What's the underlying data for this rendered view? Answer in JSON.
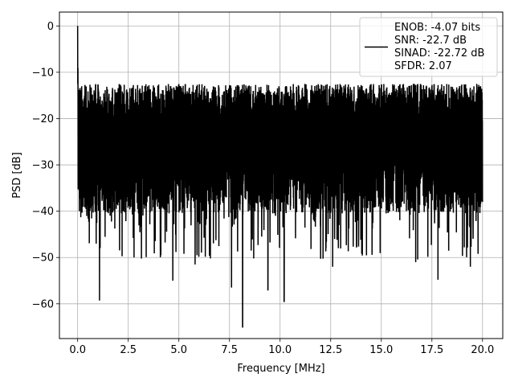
{
  "chart_data": {
    "type": "line",
    "title": "",
    "xlabel": "Frequency [MHz]",
    "ylabel": "PSD [dB]",
    "xlim": [
      -0.9,
      21.0
    ],
    "ylim": [
      -67.5,
      3.0
    ],
    "grid": true,
    "legend_position": "upper-right",
    "x_ticks": [
      0.0,
      2.5,
      5.0,
      7.5,
      10.0,
      12.5,
      15.0,
      17.5,
      20.0
    ],
    "x_tick_labels": [
      "0.0",
      "2.5",
      "5.0",
      "7.5",
      "10.0",
      "12.5",
      "15.0",
      "17.5",
      "20.0"
    ],
    "y_ticks": [
      0,
      -10,
      -20,
      -30,
      -40,
      -50,
      -60
    ],
    "y_tick_labels": [
      "0",
      "−10",
      "−20",
      "−30",
      "−40",
      "−50",
      "−60"
    ],
    "series": [
      {
        "name": "ENOB: -4.07 bits\nSNR: -22.7 dB\nSINAD: -22.72 dB\nSFDR: 2.07",
        "legend_lines": [
          "ENOB: -4.07 bits",
          "SNR: -22.7 dB",
          "SINAD: -22.72 dB",
          "SFDR: 2.07"
        ],
        "color": "#000000",
        "x_range": [
          0.0,
          20.0
        ],
        "peak": {
          "x": 0.0,
          "y": 0.0
        },
        "noise_top": -12.5,
        "noise_bottom": -38.5,
        "deep_nulls": [
          {
            "x": 1.08,
            "y": -59.3
          },
          {
            "x": 4.7,
            "y": -55.0
          },
          {
            "x": 5.8,
            "y": -51.5
          },
          {
            "x": 7.6,
            "y": -56.5
          },
          {
            "x": 8.15,
            "y": -65.0
          },
          {
            "x": 9.4,
            "y": -57.0
          },
          {
            "x": 10.2,
            "y": -59.5
          },
          {
            "x": 12.6,
            "y": -52.0
          },
          {
            "x": 16.7,
            "y": -51.0
          },
          {
            "x": 17.8,
            "y": -54.8
          },
          {
            "x": 19.4,
            "y": -52.0
          }
        ]
      }
    ]
  }
}
